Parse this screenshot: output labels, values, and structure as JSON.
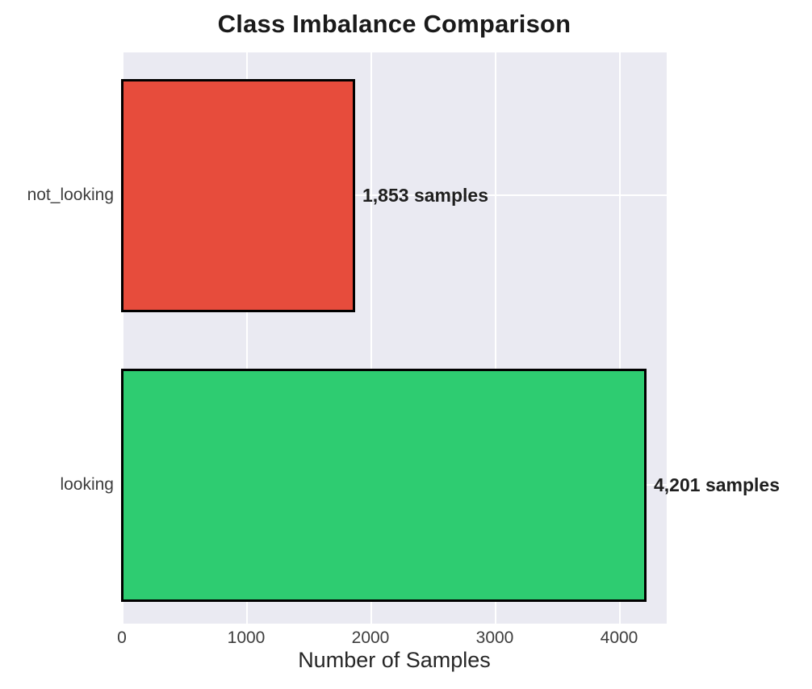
{
  "chart_data": {
    "type": "bar",
    "orientation": "horizontal",
    "title": "Class Imbalance Comparison",
    "xlabel": "Number of Samples",
    "ylabel": "",
    "categories": [
      "not_looking",
      "looking"
    ],
    "values": [
      1853,
      4201
    ],
    "bar_labels": [
      "1,853 samples",
      "4,201 samples"
    ],
    "bar_colors": [
      "#e74c3c",
      "#2ecc71"
    ],
    "bar_edge_color": "#000000",
    "x_ticks": [
      0,
      1000,
      2000,
      3000,
      4000
    ],
    "x_tick_labels": [
      "0",
      "1000",
      "2000",
      "3000",
      "4000"
    ],
    "xlim": [
      0,
      4380
    ],
    "grid": true,
    "legend": false,
    "plot_background": "#eaeaf2",
    "grid_color": "#ffffff"
  }
}
